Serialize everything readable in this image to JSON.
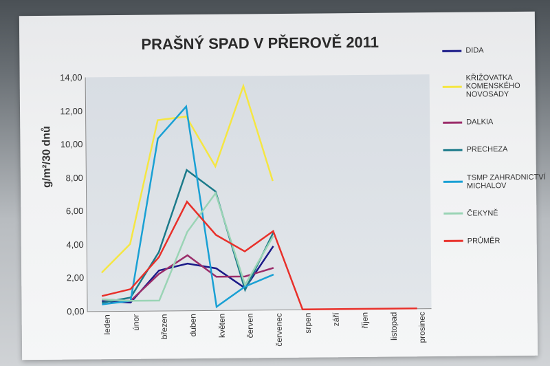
{
  "chart": {
    "type": "line",
    "title": "PRAŠNÝ SPAD V PŘEROVĚ 2011",
    "title_fontsize": 22,
    "ylabel": "g/m²/30 dnů",
    "ylabel_fontsize": 16,
    "categories": [
      "leden",
      "únor",
      "březen",
      "duben",
      "květen",
      "červen",
      "červenec",
      "srpen",
      "září",
      "říjen",
      "listopad",
      "prosinec"
    ],
    "ylim": [
      0,
      14
    ],
    "ytick_step": 2,
    "ytick_labels": [
      "0,00",
      "2,00",
      "4,00",
      "6,00",
      "8,00",
      "10,00",
      "12,00",
      "14,00"
    ],
    "plot_background": "#dde1e6",
    "axis_color": "#808080",
    "line_width": 2.5,
    "series": [
      {
        "name": "DIDA",
        "label": "DIDA",
        "color": "#1a1a88",
        "values": [
          0.6,
          0.5,
          2.4,
          2.8,
          2.5,
          1.3,
          3.8,
          null,
          null,
          null,
          null,
          null
        ]
      },
      {
        "name": "KRIZOVATKA",
        "label": "KŘIŽOVATKA KOMENSKÉHO NOVOSADY",
        "color": "#f5e642",
        "values": [
          2.3,
          4.0,
          11.4,
          11.6,
          8.6,
          13.4,
          7.7,
          null,
          null,
          null,
          null,
          null
        ]
      },
      {
        "name": "DALKIA",
        "label": "DALKIA",
        "color": "#9b2d6a",
        "values": [
          0.7,
          0.6,
          2.2,
          3.3,
          2.0,
          2.0,
          2.5,
          null,
          null,
          null,
          null,
          null
        ]
      },
      {
        "name": "PRECHEZA",
        "label": "PRECHEZA",
        "color": "#1b7a8a",
        "values": [
          0.5,
          0.8,
          3.5,
          8.4,
          7.1,
          1.2,
          4.6,
          null,
          null,
          null,
          null,
          null
        ]
      },
      {
        "name": "TSMP",
        "label": "TSMP ZAHRADNICTVÍ MICHALOV",
        "color": "#19a0d4",
        "values": [
          0.4,
          0.6,
          10.3,
          12.2,
          0.2,
          1.4,
          2.1,
          null,
          null,
          null,
          null,
          null
        ]
      },
      {
        "name": "CEKYNE",
        "label": "ČEKYNĚ",
        "color": "#9ad4b5",
        "values": [
          0.7,
          0.6,
          0.6,
          4.7,
          7.0,
          1.5,
          4.4,
          null,
          null,
          null,
          null,
          null
        ]
      },
      {
        "name": "PRUMER",
        "label": "PRŮMĚR",
        "color": "#e8302a",
        "values": [
          0.9,
          1.3,
          3.2,
          6.5,
          4.5,
          3.5,
          4.7,
          0.0,
          0.0,
          0.0,
          0.0,
          0.0
        ]
      }
    ]
  }
}
